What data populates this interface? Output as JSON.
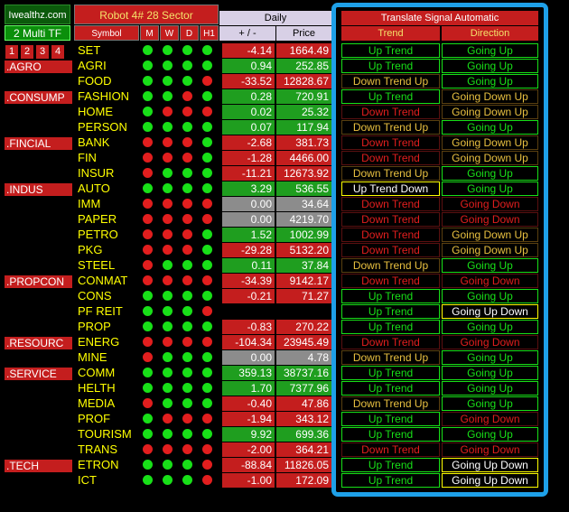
{
  "header": {
    "logo": "Iwealthz.com",
    "multi_tf": "2 Multi TF",
    "tf_numbers": [
      "1",
      "2",
      "3",
      "4"
    ],
    "robot_title": "Robot 4# 28 Sector",
    "symbol_label": "Symbol",
    "timeframes": [
      "M",
      "W",
      "D",
      "H1"
    ],
    "daily_label": "Daily",
    "change_label": "+ / -",
    "price_label": "Price",
    "translate_title": "Translate Signal Automatic",
    "trend_label": "Trend",
    "direction_label": "Direction"
  },
  "sectors": [
    ".AGRO",
    ".CONSUMP",
    ".FINCIAL",
    ".INDUS",
    ".PROPCON",
    ".RESOURC",
    ".SERVICE",
    ".TECH"
  ],
  "colors": {
    "up": "#18e018",
    "down": "#e21e1e",
    "accent": "#c41e1e",
    "panel_border": "#1ea0e8"
  },
  "rows": [
    {
      "symbol": "SET",
      "dots": [
        "g",
        "g",
        "g",
        "g"
      ],
      "change": "-4.14",
      "price": "1664.49",
      "trend": "Up Trend",
      "direction": "Going Up"
    },
    {
      "symbol": "AGRI",
      "dots": [
        "g",
        "g",
        "g",
        "g"
      ],
      "change": "0.94",
      "price": "252.85",
      "trend": "Up Trend",
      "direction": "Going Up"
    },
    {
      "symbol": "FOOD",
      "dots": [
        "g",
        "g",
        "g",
        "r"
      ],
      "change": "-33.52",
      "price": "12828.67",
      "trend": "Down Trend Up",
      "direction": "Going Up"
    },
    {
      "symbol": "FASHION",
      "dots": [
        "g",
        "g",
        "r",
        "g"
      ],
      "change": "0.28",
      "price": "720.91",
      "trend": "Up Trend",
      "direction": "Going Down Up"
    },
    {
      "symbol": "HOME",
      "dots": [
        "g",
        "r",
        "r",
        "r"
      ],
      "change": "0.02",
      "price": "25.32",
      "trend": "Down Trend",
      "direction": "Going Down Up"
    },
    {
      "symbol": "PERSON",
      "dots": [
        "g",
        "g",
        "g",
        "g"
      ],
      "change": "0.07",
      "price": "117.94",
      "trend": "Down Trend Up",
      "direction": "Going Up"
    },
    {
      "symbol": "BANK",
      "dots": [
        "r",
        "r",
        "r",
        "g"
      ],
      "change": "-2.68",
      "price": "381.73",
      "trend": "Down Trend",
      "direction": "Going Down Up"
    },
    {
      "symbol": "FIN",
      "dots": [
        "r",
        "r",
        "r",
        "g"
      ],
      "change": "-1.28",
      "price": "4466.00",
      "trend": "Down Trend",
      "direction": "Going Down Up"
    },
    {
      "symbol": "INSUR",
      "dots": [
        "r",
        "g",
        "g",
        "g"
      ],
      "change": "-11.21",
      "price": "12673.92",
      "trend": "Down Trend Up",
      "direction": "Going Up"
    },
    {
      "symbol": "AUTO",
      "dots": [
        "g",
        "g",
        "g",
        "g"
      ],
      "change": "3.29",
      "price": "536.55",
      "trend": "Up Trend Down",
      "direction": "Going Up"
    },
    {
      "symbol": "IMM",
      "dots": [
        "r",
        "r",
        "r",
        "r"
      ],
      "change": "0.00",
      "price": "34.64",
      "trend": "Down Trend",
      "direction": "Going Down"
    },
    {
      "symbol": "PAPER",
      "dots": [
        "r",
        "r",
        "r",
        "r"
      ],
      "change": "0.00",
      "price": "4219.70",
      "trend": "Down Trend",
      "direction": "Going Down"
    },
    {
      "symbol": "PETRO",
      "dots": [
        "r",
        "r",
        "r",
        "g"
      ],
      "change": "1.52",
      "price": "1002.99",
      "trend": "Down Trend",
      "direction": "Going Down Up"
    },
    {
      "symbol": "PKG",
      "dots": [
        "r",
        "r",
        "r",
        "g"
      ],
      "change": "-29.28",
      "price": "5132.20",
      "trend": "Down Trend",
      "direction": "Going Down Up"
    },
    {
      "symbol": "STEEL",
      "dots": [
        "r",
        "g",
        "g",
        "g"
      ],
      "change": "0.11",
      "price": "37.84",
      "trend": "Down Trend Up",
      "direction": "Going Up"
    },
    {
      "symbol": "CONMAT",
      "dots": [
        "r",
        "r",
        "r",
        "r"
      ],
      "change": "-34.39",
      "price": "9142.17",
      "trend": "Down Trend",
      "direction": "Going Down"
    },
    {
      "symbol": "CONS",
      "dots": [
        "g",
        "g",
        "g",
        "g"
      ],
      "change": "-0.21",
      "price": "71.27",
      "trend": "Up Trend",
      "direction": "Going Up"
    },
    {
      "symbol": "PF REIT",
      "dots": [
        "g",
        "g",
        "g",
        "r"
      ],
      "change": "",
      "price": "",
      "trend": "Up Trend",
      "direction": "Going Up Down"
    },
    {
      "symbol": "PROP",
      "dots": [
        "g",
        "g",
        "g",
        "g"
      ],
      "change": "-0.83",
      "price": "270.22",
      "trend": "Up Trend",
      "direction": "Going Up"
    },
    {
      "symbol": "ENERG",
      "dots": [
        "r",
        "r",
        "r",
        "r"
      ],
      "change": "-104.34",
      "price": "23945.49",
      "trend": "Down Trend",
      "direction": "Going Down"
    },
    {
      "symbol": "MINE",
      "dots": [
        "r",
        "g",
        "g",
        "g"
      ],
      "change": "0.00",
      "price": "4.78",
      "trend": "Down Trend Up",
      "direction": "Going Up"
    },
    {
      "symbol": "COMM",
      "dots": [
        "g",
        "g",
        "g",
        "g"
      ],
      "change": "359.13",
      "price": "38737.16",
      "trend": "Up Trend",
      "direction": "Going Up"
    },
    {
      "symbol": "HELTH",
      "dots": [
        "g",
        "g",
        "g",
        "g"
      ],
      "change": "1.70",
      "price": "7377.96",
      "trend": "Up Trend",
      "direction": "Going Up"
    },
    {
      "symbol": "MEDIA",
      "dots": [
        "r",
        "g",
        "g",
        "g"
      ],
      "change": "-0.40",
      "price": "47.86",
      "trend": "Down Trend Up",
      "direction": "Going Up"
    },
    {
      "symbol": "PROF",
      "dots": [
        "g",
        "r",
        "r",
        "r"
      ],
      "change": "-1.94",
      "price": "343.12",
      "trend": "Up Trend",
      "direction": "Going Down"
    },
    {
      "symbol": "TOURISM",
      "dots": [
        "g",
        "g",
        "g",
        "g"
      ],
      "change": "9.92",
      "price": "699.36",
      "trend": "Up Trend",
      "direction": "Going Up"
    },
    {
      "symbol": "TRANS",
      "dots": [
        "r",
        "r",
        "r",
        "r"
      ],
      "change": "-2.00",
      "price": "364.21",
      "trend": "Down Trend",
      "direction": "Going Down"
    },
    {
      "symbol": "ETRON",
      "dots": [
        "g",
        "g",
        "g",
        "r"
      ],
      "change": "-88.84",
      "price": "11826.05",
      "trend": "Up Trend",
      "direction": "Going Up Down"
    },
    {
      "symbol": "ICT",
      "dots": [
        "g",
        "g",
        "g",
        "r"
      ],
      "change": "-1.00",
      "price": "172.09",
      "trend": "Up Trend",
      "direction": "Going Up Down"
    }
  ]
}
